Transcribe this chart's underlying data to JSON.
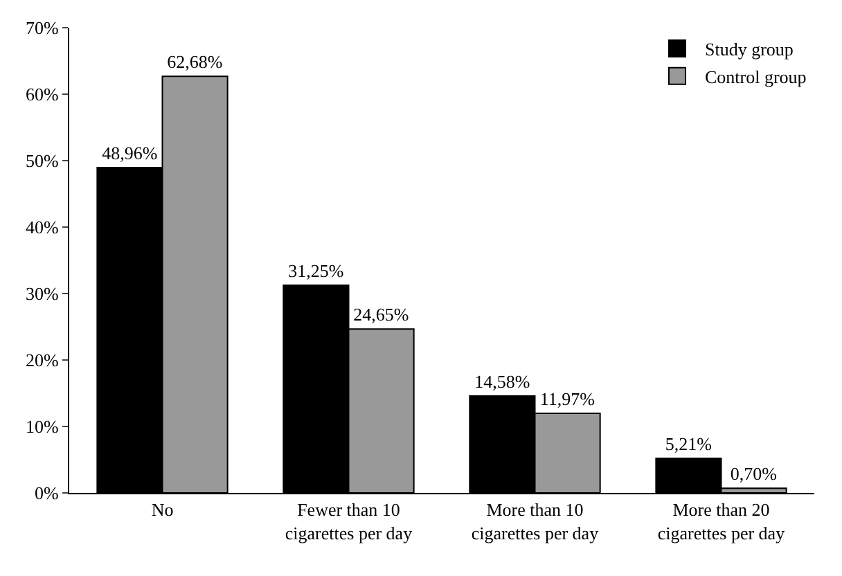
{
  "chart_data": {
    "type": "bar",
    "categories": [
      "No",
      "Fewer than 10 cigarettes per day",
      "More than 10 cigarettes per day",
      "More than 20 cigarettes per day"
    ],
    "series": [
      {
        "name": "Study group",
        "color": "#000000",
        "values": [
          48.96,
          31.25,
          14.58,
          5.21
        ],
        "value_labels": [
          "48,96%",
          "31,25%",
          "14,58%",
          "5,21%"
        ]
      },
      {
        "name": "Control group",
        "color": "#999999",
        "values": [
          62.68,
          24.65,
          11.97,
          0.7
        ],
        "value_labels": [
          "62,68%",
          "24,65%",
          "11,97%",
          "0,70%"
        ]
      }
    ],
    "ylim": [
      0,
      70
    ],
    "yticks": [
      {
        "value": 0,
        "label": "0%"
      },
      {
        "value": 10,
        "label": "10%"
      },
      {
        "value": 20,
        "label": "20%"
      },
      {
        "value": 30,
        "label": "30%"
      },
      {
        "value": 40,
        "label": "40%"
      },
      {
        "value": 50,
        "label": "50%"
      },
      {
        "value": 60,
        "label": "60%"
      },
      {
        "value": 70,
        "label": "70%"
      }
    ],
    "legend": "top right"
  }
}
